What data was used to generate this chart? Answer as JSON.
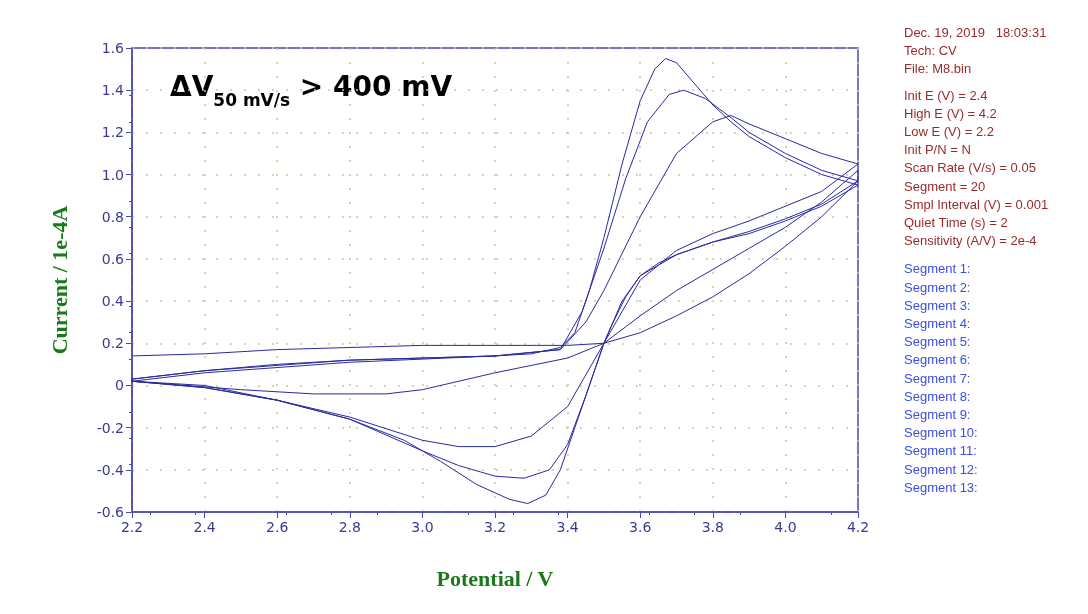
{
  "chart_data": {
    "type": "line",
    "xlabel": "Potential / V",
    "ylabel": "Current / 1e-4A",
    "xlim": [
      2.2,
      4.2
    ],
    "ylim": [
      -0.6,
      1.6
    ],
    "xticks": [
      2.2,
      2.4,
      2.6,
      2.8,
      {
        "value": 3,
        "label": "3.0"
      },
      3.2,
      3.4,
      3.6,
      3.8,
      {
        "value": 4,
        "label": "4.0"
      },
      4.2
    ],
    "yticks": [
      -0.6,
      -0.4,
      -0.2,
      0,
      0.2,
      0.4,
      0.6,
      0.8,
      {
        "value": 1,
        "label": "1.0"
      },
      1.2,
      1.4,
      1.6
    ],
    "grid": true,
    "marker": "none",
    "line_style": "solid",
    "annotations": [
      "ΔV$_{50 mV/s}$ > 400 mV",
      "Dec. 19, 2019   18:03:31",
      "Tech: CV",
      "File: M8.bin",
      "Init E (V) = 2.4",
      "High E (V) = 4.2",
      "Low E (V) = 2.2",
      "Init P/N = N",
      "Scan Rate (V/s) = 0.05",
      "Segment = 20",
      "Smpl Interval (V) = 0.001",
      "Quiet Time (s) = 2",
      "Sensitivity (A/V) = 2e-4",
      "Segment 1:",
      "Segment 2:",
      "Segment 3:",
      "Segment 4:",
      "Segment 5:",
      "Segment 6:",
      "Segment 7:",
      "Segment 8:",
      "Segment 9:",
      "Segment 10:",
      "Segment 11:",
      "Segment 12:",
      "Segment 13:"
    ],
    "series": [
      {
        "color": "#2a2aa0",
        "x": [
          2.2,
          2.4,
          2.6,
          2.8,
          3.0,
          3.4,
          3.5,
          3.6,
          3.7,
          3.8,
          3.9,
          4.0,
          4.1,
          4.2,
          4.2,
          4.1,
          4.0,
          3.9,
          3.8,
          3.7,
          3.6,
          3.5,
          3.4,
          3.2,
          3.0,
          2.9,
          2.7,
          2.5,
          2.2,
          2.2,
          2.4,
          2.8,
          3.2,
          3.38,
          3.45,
          3.5,
          3.6,
          3.7,
          3.8,
          3.85,
          3.9,
          4.0,
          4.1,
          4.2,
          4.1,
          4.0,
          3.9,
          3.8,
          3.7,
          3.6,
          3.5,
          3.45,
          3.4,
          3.3,
          3.2,
          3.1,
          3.0,
          2.8,
          2.6,
          2.4,
          2.2,
          2.2,
          2.4,
          2.8,
          3.2,
          3.38,
          3.44,
          3.5,
          3.56,
          3.62,
          3.68,
          3.72,
          3.78,
          3.85,
          3.9,
          4.0,
          4.1,
          4.2,
          4.1,
          4.0,
          3.9,
          3.8,
          3.7,
          3.6,
          3.55,
          3.5,
          3.45,
          3.4,
          3.35,
          3.28,
          3.2,
          3.1,
          3.0,
          2.8,
          2.6,
          2.4,
          2.2,
          2.2,
          2.4,
          2.6,
          2.8,
          3.0,
          3.2,
          3.3,
          3.38,
          3.42,
          3.46,
          3.5,
          3.55,
          3.6,
          3.64,
          3.67,
          3.7,
          3.75,
          3.8,
          3.85,
          3.9,
          4.0,
          4.1,
          4.2,
          4.1,
          4.0,
          3.9,
          3.8,
          3.7,
          3.65,
          3.6,
          3.56,
          3.52,
          3.5,
          3.46,
          3.42,
          3.38,
          3.34,
          3.29,
          3.24,
          3.15,
          3.05,
          2.95,
          2.8,
          2.6,
          2.4,
          2.2
        ],
        "values": [
          0.14,
          0.15,
          0.17,
          0.18,
          0.19,
          0.19,
          0.2,
          0.25,
          0.33,
          0.42,
          0.53,
          0.66,
          0.8,
          0.97,
          1.02,
          0.87,
          0.75,
          0.65,
          0.55,
          0.45,
          0.33,
          0.2,
          0.13,
          0.06,
          -0.02,
          -0.04,
          -0.04,
          -0.02,
          0.02,
          0.02,
          0.06,
          0.11,
          0.14,
          0.17,
          0.3,
          0.45,
          0.8,
          1.1,
          1.25,
          1.28,
          1.24,
          1.17,
          1.1,
          1.05,
          0.92,
          0.85,
          0.78,
          0.72,
          0.64,
          0.5,
          0.2,
          0.05,
          -0.1,
          -0.24,
          -0.29,
          -0.29,
          -0.26,
          -0.15,
          -0.07,
          0.0,
          0.02,
          0.03,
          0.07,
          0.12,
          0.14,
          0.17,
          0.35,
          0.65,
          0.98,
          1.25,
          1.38,
          1.4,
          1.36,
          1.27,
          1.2,
          1.1,
          1.02,
          0.97,
          0.86,
          0.79,
          0.73,
          0.68,
          0.62,
          0.52,
          0.4,
          0.2,
          -0.05,
          -0.28,
          -0.4,
          -0.44,
          -0.43,
          -0.38,
          -0.31,
          -0.16,
          -0.07,
          -0.01,
          0.02,
          0.03,
          0.07,
          0.1,
          0.12,
          0.13,
          0.14,
          0.15,
          0.18,
          0.25,
          0.45,
          0.7,
          1.05,
          1.35,
          1.5,
          1.55,
          1.53,
          1.43,
          1.33,
          1.25,
          1.18,
          1.08,
          1.0,
          0.95,
          0.85,
          0.78,
          0.72,
          0.68,
          0.62,
          0.58,
          0.52,
          0.42,
          0.28,
          0.2,
          0.0,
          -0.2,
          -0.4,
          -0.52,
          -0.56,
          -0.54,
          -0.47,
          -0.36,
          -0.26,
          -0.16,
          -0.07,
          -0.01,
          0.02
        ]
      }
    ]
  }
}
